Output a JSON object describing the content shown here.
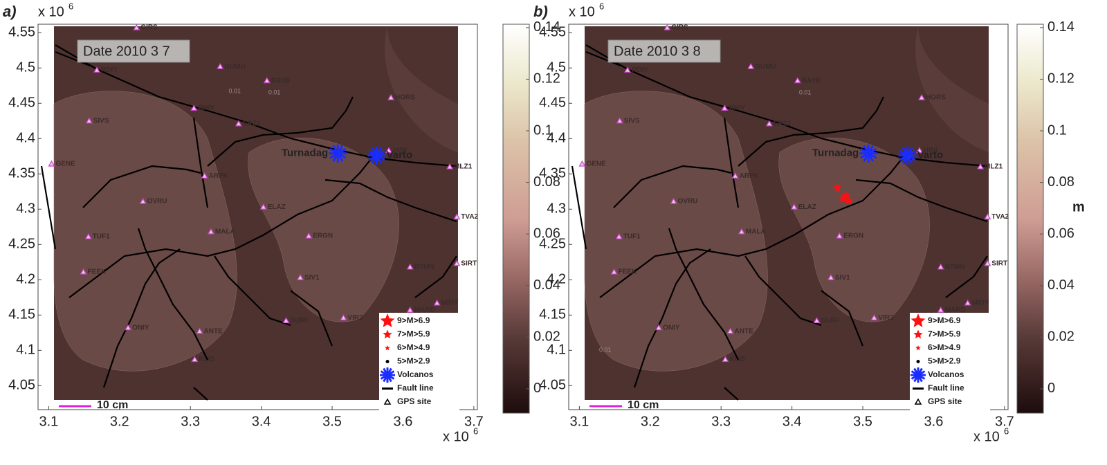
{
  "chart_data": [
    {
      "type": "map",
      "panel_label": "a)",
      "axis_multiplier": "x 10",
      "axis_multiplier_exp": "6",
      "date_label": "Date 2010 3 7",
      "xlim": [
        3.085,
        3.705
      ],
      "xticks": [
        3.1,
        3.2,
        3.3,
        3.4,
        3.5,
        3.6,
        3.7
      ],
      "ylim": [
        4.016,
        4.562
      ],
      "yticks": [
        4.05,
        4.1,
        4.15,
        4.2,
        4.25,
        4.3,
        4.35,
        4.4,
        4.45,
        4.5,
        4.55
      ],
      "clim": [
        -0.0094,
        0.1413
      ],
      "cticks": [
        0,
        0.02,
        0.04,
        0.06,
        0.08,
        0.1,
        0.12,
        0.14
      ],
      "stations": {
        "color": "#d040d0",
        "names": [
          "GIRS",
          "GUMU",
          "BAYB",
          "HORS",
          "RDIY",
          "RHIY",
          "SIVS",
          "ERZ2",
          "HINI",
          "GENE",
          "ARPK",
          "MLZ1",
          "OVRU",
          "ELAZ",
          "TVA2",
          "MALA",
          "TUF1",
          "ERGN",
          "SIRT",
          "BTMN",
          "FEEK",
          "SIV1",
          "MIDY",
          "MARD",
          "VIR2",
          "SURF",
          "ONIY",
          "ANTE",
          "KLIS"
        ],
        "x": [
          3.224,
          3.342,
          3.408,
          3.583,
          3.168,
          3.305,
          3.157,
          3.368,
          3.58,
          3.104,
          3.32,
          3.666,
          3.233,
          3.403,
          3.676,
          3.329,
          3.156,
          3.467,
          3.676,
          3.61,
          3.149,
          3.455,
          3.648,
          3.61,
          3.516,
          3.435,
          3.212,
          3.313,
          3.306
        ],
        "y": [
          4.557,
          4.502,
          4.482,
          4.458,
          4.497,
          4.443,
          4.425,
          4.421,
          4.383,
          4.364,
          4.347,
          4.36,
          4.311,
          4.303,
          4.289,
          4.268,
          4.261,
          4.262,
          4.223,
          4.218,
          4.211,
          4.203,
          4.167,
          4.157,
          4.146,
          4.142,
          4.132,
          4.127,
          4.087
        ]
      },
      "volcanoes": {
        "color": "#1a2cff",
        "names": [
          "Turnadag",
          "Varto"
        ],
        "x": [
          3.508,
          3.563
        ],
        "y": [
          4.379,
          4.376
        ]
      },
      "contour_labels": {
        "labels": [
          "0.01",
          "0.01"
        ],
        "x": [
          3.354,
          3.41
        ],
        "y": [
          4.467,
          4.465
        ]
      },
      "legend": [
        "9>M>6.9",
        "7>M>5.9",
        "6>M>4.9",
        "5>M>2.9",
        "Volcanos",
        "Fault line",
        "GPS site"
      ],
      "scale_bar_label": "10 cm"
    },
    {
      "type": "map",
      "panel_label": "b)",
      "axis_multiplier": "x 10",
      "axis_multiplier_exp": "6",
      "date_label": "Date 2010 3 8",
      "xlim": [
        3.085,
        3.705
      ],
      "xticks": [
        3.1,
        3.2,
        3.3,
        3.4,
        3.5,
        3.6,
        3.7
      ],
      "ylim": [
        4.016,
        4.562
      ],
      "yticks": [
        4.05,
        4.1,
        4.15,
        4.2,
        4.25,
        4.3,
        4.35,
        4.4,
        4.45,
        4.5,
        4.55
      ],
      "clim": [
        -0.0094,
        0.1413
      ],
      "cticks": [
        0,
        0.02,
        0.04,
        0.06,
        0.08,
        0.1,
        0.12,
        0.14
      ],
      "colorbar_label": "m",
      "stations": {
        "color": "#d040d0",
        "names": [
          "GIRS",
          "GUMU",
          "BAYB",
          "HORS",
          "RDIY",
          "RHIY",
          "SIVS",
          "ERZ2",
          "HINI",
          "GENE",
          "ARPK",
          "MLZ1",
          "OVRU",
          "ELAZ",
          "TVA2",
          "MALA",
          "TUF1",
          "ERGN",
          "SIRT",
          "BTMN",
          "FEEK",
          "SIV1",
          "MIDY",
          "MARD",
          "VIR2",
          "SURF",
          "ONIY",
          "ANTE",
          "KLIS"
        ],
        "x": [
          3.224,
          3.342,
          3.408,
          3.583,
          3.168,
          3.305,
          3.157,
          3.368,
          3.58,
          3.104,
          3.32,
          3.666,
          3.233,
          3.403,
          3.676,
          3.329,
          3.156,
          3.467,
          3.676,
          3.61,
          3.149,
          3.455,
          3.648,
          3.61,
          3.516,
          3.435,
          3.212,
          3.313,
          3.306
        ],
        "y": [
          4.557,
          4.502,
          4.482,
          4.458,
          4.497,
          4.443,
          4.425,
          4.421,
          4.383,
          4.364,
          4.347,
          4.36,
          4.311,
          4.303,
          4.289,
          4.268,
          4.261,
          4.262,
          4.223,
          4.218,
          4.211,
          4.203,
          4.167,
          4.157,
          4.146,
          4.142,
          4.132,
          4.127,
          4.087
        ]
      },
      "volcanoes": {
        "color": "#1a2cff",
        "names": [
          "Turnadag",
          "Varto"
        ],
        "x": [
          3.508,
          3.563
        ],
        "y": [
          4.379,
          4.376
        ]
      },
      "earthquakes": {
        "color": "#ff1010",
        "x": [
          3.464,
          3.472,
          3.476,
          3.48
        ],
        "y": [
          4.33,
          4.315,
          4.319,
          4.312
        ]
      },
      "contour_labels": {
        "labels": [
          "0.01",
          "0.01"
        ],
        "x": [
          3.41,
          3.128
        ],
        "y": [
          4.465,
          4.1
        ]
      },
      "legend": [
        "9>M>6.9",
        "7>M>5.9",
        "6>M>4.9",
        "5>M>2.9",
        "Volcanos",
        "Fault line",
        "GPS site"
      ],
      "scale_bar_label": "10 cm"
    }
  ]
}
